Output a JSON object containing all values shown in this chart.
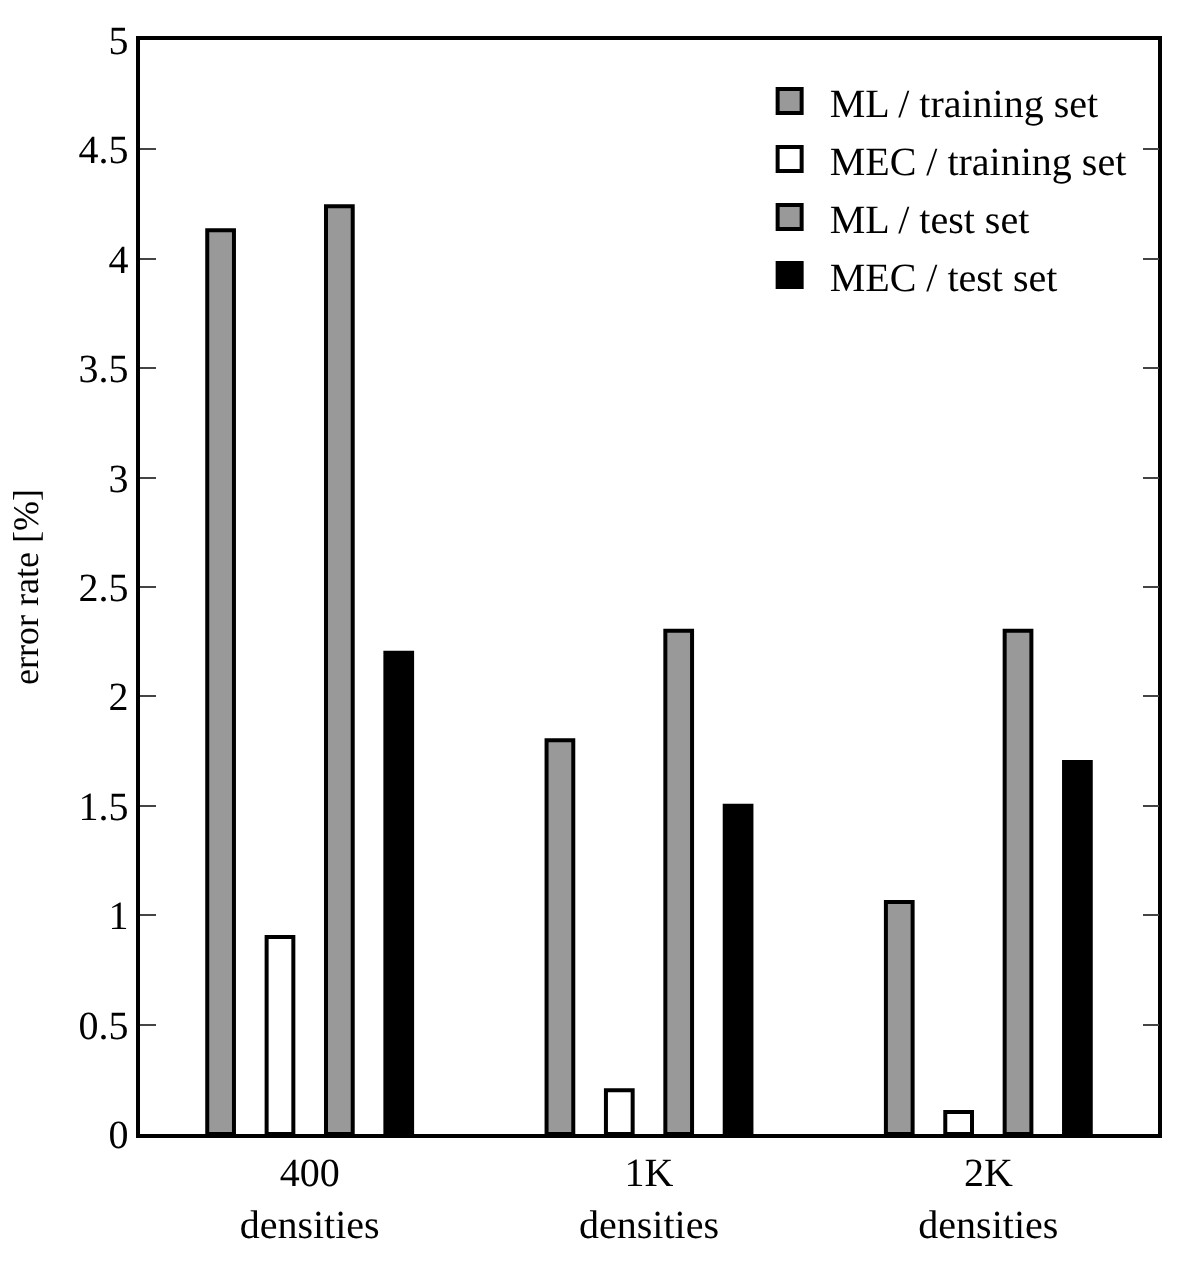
{
  "chart_data": {
    "type": "bar",
    "ylabel": "error rate [%]",
    "categories": [
      "400\ndensities",
      "1K\ndensities",
      "2K\ndensities"
    ],
    "series": [
      {
        "name": "ML / training set",
        "color": "#999999",
        "values": [
          4.13,
          1.8,
          1.06
        ]
      },
      {
        "name": "MEC / training set",
        "color": "#ffffff",
        "values": [
          0.9,
          0.2,
          0.1
        ]
      },
      {
        "name": "ML / test set",
        "color": "#999999",
        "values": [
          4.24,
          2.3,
          2.3
        ]
      },
      {
        "name": "MEC / test set",
        "color": "#000000",
        "values": [
          2.2,
          1.5,
          1.7
        ]
      }
    ],
    "ylim": [
      0,
      5
    ],
    "yticks": [
      0,
      0.5,
      1,
      1.5,
      2,
      2.5,
      3,
      3.5,
      4,
      4.5,
      5
    ],
    "legend": "top right"
  }
}
